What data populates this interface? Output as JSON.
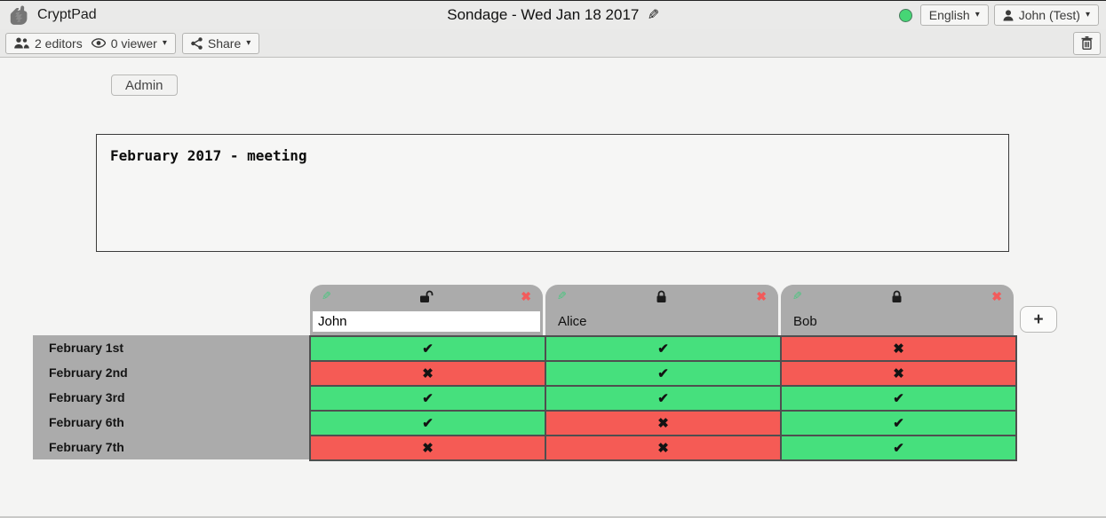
{
  "topbar": {
    "app_name": "CryptPad",
    "title": "Sondage - Wed Jan 18 2017",
    "edit_title_icon": "✎",
    "language_label": "English",
    "user_label": "John (Test)",
    "caret": "▾"
  },
  "toolbar": {
    "editors_label": "2 editors",
    "viewers_label": "0 viewer",
    "share_label": "Share"
  },
  "admin_label": "Admin",
  "description_text": "February 2017 - meeting",
  "poll": {
    "columns": [
      {
        "name": "John",
        "editable": true,
        "locked": false
      },
      {
        "name": "Alice",
        "editable": false,
        "locked": true
      },
      {
        "name": "Bob",
        "editable": false,
        "locked": true
      }
    ],
    "column_icons": {
      "edit": "✎",
      "remove": "✖"
    },
    "rows": [
      "February 1st",
      "February 2nd",
      "February 3rd",
      "February 6th",
      "February 7th"
    ],
    "votes": [
      [
        "yes",
        "yes",
        "no"
      ],
      [
        "no",
        "yes",
        "no"
      ],
      [
        "yes",
        "yes",
        "yes"
      ],
      [
        "yes",
        "no",
        "yes"
      ],
      [
        "no",
        "no",
        "yes"
      ]
    ],
    "yes_glyph": "✔",
    "no_glyph": "✖",
    "add_column_label": "+"
  },
  "colors": {
    "yes_bg": "#46e07d",
    "no_bg": "#f55b55",
    "header_gray": "#ababab",
    "status_green": "#46d675",
    "remove_red": "#f25b5b",
    "edit_green": "#49c77f"
  }
}
